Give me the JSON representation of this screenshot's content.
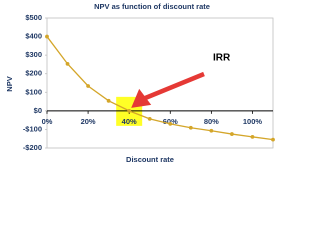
{
  "chart_data": {
    "type": "line",
    "title": "NPV as function of discount rate",
    "x_label": "Discount rate",
    "y_label": "NPV",
    "annotation": "IRR",
    "x": [
      0,
      10,
      20,
      30,
      40,
      50,
      60,
      70,
      80,
      90,
      100,
      110
    ],
    "series": [
      {
        "name": "NPV",
        "color": "#d4a62a",
        "values": [
          400,
          253,
          134,
          54,
          0,
          -43,
          -70,
          -91,
          -107,
          -125,
          -140,
          -155
        ]
      }
    ],
    "xlim": [
      0,
      110
    ],
    "xticks": [
      {
        "value": 0,
        "label": "0%"
      },
      {
        "value": 20,
        "label": "20%"
      },
      {
        "value": 40,
        "label": "40%"
      },
      {
        "value": 60,
        "label": "60%"
      },
      {
        "value": 80,
        "label": "80%"
      },
      {
        "value": 100,
        "label": "100%"
      }
    ],
    "ylim": [
      -200,
      500
    ],
    "yticks": [
      {
        "value": -200,
        "label": "-$200"
      },
      {
        "value": -100,
        "label": "-$100"
      },
      {
        "value": 0,
        "label": "$0"
      },
      {
        "value": 100,
        "label": "$100"
      },
      {
        "value": 200,
        "label": "$200"
      },
      {
        "value": 300,
        "label": "$300"
      },
      {
        "value": 400,
        "label": "$400"
      },
      {
        "value": 500,
        "label": "$500"
      }
    ],
    "highlight_x": 40,
    "highlight_color": "#ffff00",
    "arrow_color": "#e53935"
  }
}
